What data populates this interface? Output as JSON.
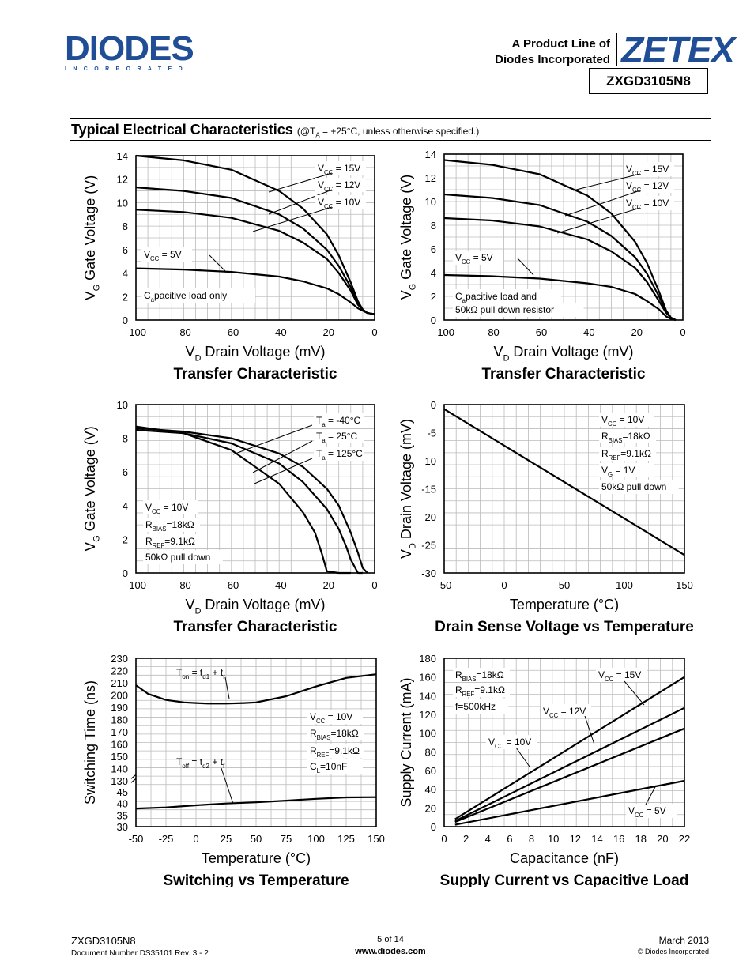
{
  "header": {
    "logo_text": "DIODES",
    "logo_sub": "INCORPORATED",
    "product_line_1": "A Product Line of",
    "product_line_2": "Diodes Incorporated",
    "brand": "ZETEX",
    "part_number": "ZXGD3105N8"
  },
  "section": {
    "title": "Typical Electrical Characteristics",
    "condition_prefix": "(@T",
    "condition_sub": "A",
    "condition_suffix": " = +25°C, unless otherwise specified.)"
  },
  "footer": {
    "part": "ZXGD3105N8",
    "doc": "Document Number DS35101 Rev. 3 - 2",
    "page": "5 of 14",
    "url": "www.diodes.com",
    "date": "March 2013",
    "copyright": "© Diodes Incorporated"
  },
  "chart_data": [
    {
      "type": "line",
      "title": "Transfer Characteristic",
      "xlabel": "V_D Drain Voltage (mV)",
      "ylabel": "V_G Gate Voltage (V)",
      "xlim": [
        -100,
        0
      ],
      "ylim": [
        0,
        14
      ],
      "xticks": [
        -100,
        -80,
        -60,
        -40,
        -20,
        0
      ],
      "yticks": [
        0,
        2,
        4,
        6,
        8,
        10,
        12,
        14
      ],
      "grid": true,
      "annotations": [
        "Capacitive load only"
      ],
      "series": [
        {
          "name": "VCC = 15V",
          "x": [
            -100,
            -80,
            -60,
            -40,
            -30,
            -20,
            -15,
            -10,
            -7,
            -5,
            -3,
            0
          ],
          "y": [
            14.0,
            13.6,
            12.8,
            11.0,
            9.5,
            7.3,
            5.5,
            3.2,
            1.6,
            0.9,
            0.6,
            0.5
          ]
        },
        {
          "name": "VCC = 12V",
          "x": [
            -100,
            -80,
            -60,
            -40,
            -30,
            -20,
            -15,
            -10,
            -7,
            -5,
            -3,
            0
          ],
          "y": [
            11.3,
            11.0,
            10.4,
            9.0,
            7.8,
            6.0,
            4.6,
            2.8,
            1.4,
            0.9,
            0.6,
            0.5
          ]
        },
        {
          "name": "VCC = 10V",
          "x": [
            -100,
            -80,
            -60,
            -40,
            -30,
            -20,
            -15,
            -10,
            -7,
            -5,
            -3,
            0
          ],
          "y": [
            9.4,
            9.2,
            8.7,
            7.6,
            6.6,
            5.2,
            4.0,
            2.5,
            1.3,
            0.9,
            0.6,
            0.5
          ]
        },
        {
          "name": "VCC = 5V",
          "x": [
            -100,
            -80,
            -60,
            -40,
            -30,
            -20,
            -15,
            -10,
            -7,
            -5,
            -3,
            0
          ],
          "y": [
            4.4,
            4.3,
            4.1,
            3.7,
            3.3,
            2.7,
            2.2,
            1.5,
            1.0,
            0.8,
            0.6,
            0.5
          ]
        }
      ]
    },
    {
      "type": "line",
      "title": "Transfer Characteristic",
      "xlabel": "V_D Drain Voltage (mV)",
      "ylabel": "V_G Gate Voltage (V)",
      "xlim": [
        -100,
        0
      ],
      "ylim": [
        0,
        14
      ],
      "xticks": [
        -100,
        -80,
        -60,
        -40,
        -20,
        0
      ],
      "yticks": [
        0,
        2,
        4,
        6,
        8,
        10,
        12,
        14
      ],
      "grid": true,
      "annotations": [
        "Capacitive load and",
        "50kΩ pull down resistor"
      ],
      "series": [
        {
          "name": "VCC = 15V",
          "x": [
            -100,
            -80,
            -60,
            -40,
            -30,
            -20,
            -15,
            -10,
            -7,
            -5,
            -3
          ],
          "y": [
            13.5,
            13.1,
            12.3,
            10.5,
            9.0,
            6.6,
            4.8,
            2.4,
            0.8,
            0.2,
            0.0
          ]
        },
        {
          "name": "VCC = 12V",
          "x": [
            -100,
            -80,
            -60,
            -40,
            -30,
            -20,
            -15,
            -10,
            -7,
            -5,
            -3
          ],
          "y": [
            10.6,
            10.3,
            9.7,
            8.3,
            7.1,
            5.3,
            3.9,
            2.0,
            0.7,
            0.2,
            0.0
          ]
        },
        {
          "name": "VCC = 10V",
          "x": [
            -100,
            -80,
            -60,
            -40,
            -30,
            -20,
            -15,
            -10,
            -7,
            -5,
            -3
          ],
          "y": [
            8.6,
            8.4,
            7.9,
            6.8,
            5.8,
            4.4,
            3.2,
            1.6,
            0.6,
            0.2,
            0.0
          ]
        },
        {
          "name": "VCC = 5V",
          "x": [
            -100,
            -80,
            -60,
            -40,
            -30,
            -20,
            -15,
            -10,
            -7,
            -5,
            -3
          ],
          "y": [
            3.8,
            3.7,
            3.5,
            3.1,
            2.8,
            2.2,
            1.6,
            0.9,
            0.3,
            0.1,
            0.0
          ]
        }
      ]
    },
    {
      "type": "line",
      "title": "Transfer Characteristic",
      "xlabel": "V_D Drain Voltage (mV)",
      "ylabel": "V_G Gate Voltage (V)",
      "xlim": [
        -100,
        0
      ],
      "ylim": [
        0,
        10
      ],
      "xticks": [
        -100,
        -80,
        -60,
        -40,
        -20,
        0
      ],
      "yticks": [
        0,
        2,
        4,
        6,
        8,
        10
      ],
      "grid": true,
      "annotations": [
        "VCC = 10V",
        "RBIAS=18kΩ",
        "RREF=9.1kΩ",
        "50kΩ pull down"
      ],
      "series": [
        {
          "name": "Ta = -40°C",
          "x": [
            -100,
            -80,
            -60,
            -40,
            -30,
            -20,
            -15,
            -10,
            -7,
            -5,
            -3
          ],
          "y": [
            8.6,
            8.4,
            8.0,
            7.1,
            6.3,
            5.0,
            4.0,
            2.4,
            1.2,
            0.3,
            0.0
          ]
        },
        {
          "name": "Ta = 25°C",
          "x": [
            -100,
            -80,
            -60,
            -40,
            -30,
            -20,
            -15,
            -12,
            -10,
            -7,
            -5
          ],
          "y": [
            8.5,
            8.3,
            7.7,
            6.5,
            5.4,
            3.8,
            2.6,
            1.6,
            0.8,
            0.0,
            0.0
          ]
        },
        {
          "name": "Ta = 125°C",
          "x": [
            -100,
            -80,
            -60,
            -40,
            -30,
            -25,
            -22,
            -20,
            -15,
            -10
          ],
          "y": [
            8.7,
            8.3,
            7.3,
            5.3,
            3.6,
            2.4,
            1.1,
            0.1,
            0.0,
            0.0
          ]
        }
      ]
    },
    {
      "type": "line",
      "title": "Drain Sense Voltage vs Temperature",
      "xlabel": "Temperature (°C)",
      "ylabel": "V_D Drain Voltage (mV)",
      "xlim": [
        -50,
        150
      ],
      "ylim": [
        -30,
        0
      ],
      "xticks": [
        -50,
        0,
        50,
        100,
        150
      ],
      "yticks": [
        0,
        -5,
        -10,
        -15,
        -20,
        -25,
        -30
      ],
      "grid": true,
      "annotations": [
        "VCC = 10V",
        "RBIAS=18kΩ",
        "RREF=9.1kΩ",
        "VG = 1V",
        "50kΩ pull down"
      ],
      "series": [
        {
          "x": [
            -50,
            150
          ],
          "y": [
            -0.8,
            -26.8
          ]
        }
      ]
    },
    {
      "type": "line",
      "title": "Switching vs Temperature",
      "xlabel": "Temperature (°C)",
      "ylabel": "Switching Time (ns)",
      "xlim": [
        -50,
        150
      ],
      "xticks": [
        -50,
        -25,
        0,
        25,
        50,
        75,
        100,
        125,
        150
      ],
      "yticks_upper": [
        130,
        140,
        150,
        160,
        170,
        180,
        190,
        200,
        210,
        220,
        230
      ],
      "yticks_lower": [
        30,
        35,
        40,
        45
      ],
      "grid": true,
      "annotations": [
        "VCC = 10V",
        "RBIAS=18kΩ",
        "RREF=9.1kΩ",
        "CL=10nF"
      ],
      "series": [
        {
          "name": "Ton = td1 + tr",
          "x": [
            -50,
            -40,
            -25,
            -10,
            0,
            10,
            25,
            40,
            50,
            75,
            100,
            125,
            150
          ],
          "y": [
            208,
            201,
            196,
            194,
            193.5,
            193,
            193,
            193.5,
            194,
            199,
            207,
            214,
            217
          ]
        },
        {
          "name": "Toff = td2 + tf",
          "x": [
            -50,
            -25,
            0,
            25,
            50,
            75,
            100,
            125,
            150
          ],
          "y": [
            37.8,
            38.3,
            39.2,
            40.0,
            40.5,
            41.2,
            42.0,
            42.6,
            42.7
          ]
        }
      ]
    },
    {
      "type": "line",
      "title": "Supply Current vs Capacitive Load",
      "xlabel": "Capacitance (nF)",
      "ylabel": "Supply Current (mA)",
      "xlim": [
        0,
        22
      ],
      "ylim": [
        0,
        180
      ],
      "xticks": [
        0,
        2,
        4,
        6,
        8,
        10,
        12,
        14,
        16,
        18,
        20,
        22
      ],
      "yticks": [
        0,
        20,
        40,
        60,
        80,
        100,
        120,
        140,
        160,
        180
      ],
      "grid": true,
      "annotations": [
        "RBIAS=18kΩ",
        "RREF=9.1kΩ",
        "f=500kHz"
      ],
      "series": [
        {
          "name": "VCC = 15V",
          "x": [
            1,
            22
          ],
          "y": [
            8,
            160
          ]
        },
        {
          "name": "VCC = 12V",
          "x": [
            1,
            22
          ],
          "y": [
            6,
            127
          ]
        },
        {
          "name": "VCC = 10V",
          "x": [
            1,
            22
          ],
          "y": [
            5,
            105
          ]
        },
        {
          "name": "VCC = 5V",
          "x": [
            1,
            22
          ],
          "y": [
            2,
            49
          ]
        }
      ]
    }
  ]
}
